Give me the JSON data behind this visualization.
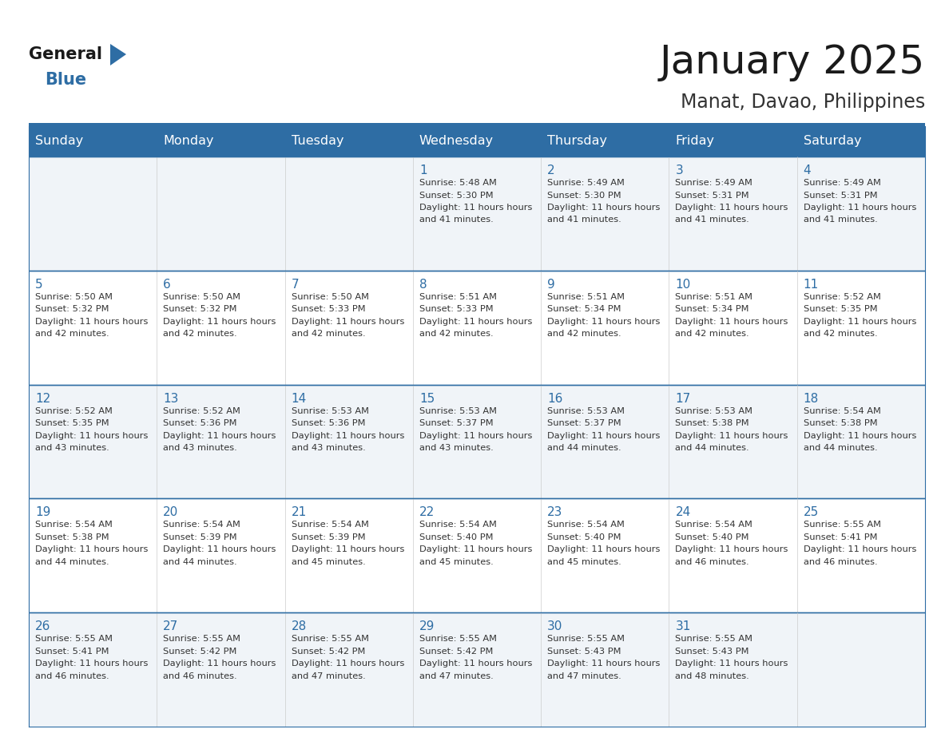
{
  "title": "January 2025",
  "subtitle": "Manat, Davao, Philippines",
  "days_of_week": [
    "Sunday",
    "Monday",
    "Tuesday",
    "Wednesday",
    "Thursday",
    "Friday",
    "Saturday"
  ],
  "header_bg_color": "#2E6DA4",
  "header_text_color": "#FFFFFF",
  "cell_bg_even": "#F0F4F8",
  "cell_bg_odd": "#FFFFFF",
  "border_color": "#2E6DA4",
  "title_color": "#1a1a1a",
  "subtitle_color": "#333333",
  "day_number_color": "#2E6DA4",
  "cell_text_color": "#333333",
  "logo_general_color": "#1a1a1a",
  "logo_blue_color": "#2E6DA4",
  "weeks": [
    [
      {
        "date": "",
        "sunrise": "",
        "sunset": "",
        "daylight": ""
      },
      {
        "date": "",
        "sunrise": "",
        "sunset": "",
        "daylight": ""
      },
      {
        "date": "",
        "sunrise": "",
        "sunset": "",
        "daylight": ""
      },
      {
        "date": "1",
        "sunrise": "5:48 AM",
        "sunset": "5:30 PM",
        "daylight": "11 hours and 41 minutes."
      },
      {
        "date": "2",
        "sunrise": "5:49 AM",
        "sunset": "5:30 PM",
        "daylight": "11 hours and 41 minutes."
      },
      {
        "date": "3",
        "sunrise": "5:49 AM",
        "sunset": "5:31 PM",
        "daylight": "11 hours and 41 minutes."
      },
      {
        "date": "4",
        "sunrise": "5:49 AM",
        "sunset": "5:31 PM",
        "daylight": "11 hours and 41 minutes."
      }
    ],
    [
      {
        "date": "5",
        "sunrise": "5:50 AM",
        "sunset": "5:32 PM",
        "daylight": "11 hours and 42 minutes."
      },
      {
        "date": "6",
        "sunrise": "5:50 AM",
        "sunset": "5:32 PM",
        "daylight": "11 hours and 42 minutes."
      },
      {
        "date": "7",
        "sunrise": "5:50 AM",
        "sunset": "5:33 PM",
        "daylight": "11 hours and 42 minutes."
      },
      {
        "date": "8",
        "sunrise": "5:51 AM",
        "sunset": "5:33 PM",
        "daylight": "11 hours and 42 minutes."
      },
      {
        "date": "9",
        "sunrise": "5:51 AM",
        "sunset": "5:34 PM",
        "daylight": "11 hours and 42 minutes."
      },
      {
        "date": "10",
        "sunrise": "5:51 AM",
        "sunset": "5:34 PM",
        "daylight": "11 hours and 42 minutes."
      },
      {
        "date": "11",
        "sunrise": "5:52 AM",
        "sunset": "5:35 PM",
        "daylight": "11 hours and 42 minutes."
      }
    ],
    [
      {
        "date": "12",
        "sunrise": "5:52 AM",
        "sunset": "5:35 PM",
        "daylight": "11 hours and 43 minutes."
      },
      {
        "date": "13",
        "sunrise": "5:52 AM",
        "sunset": "5:36 PM",
        "daylight": "11 hours and 43 minutes."
      },
      {
        "date": "14",
        "sunrise": "5:53 AM",
        "sunset": "5:36 PM",
        "daylight": "11 hours and 43 minutes."
      },
      {
        "date": "15",
        "sunrise": "5:53 AM",
        "sunset": "5:37 PM",
        "daylight": "11 hours and 43 minutes."
      },
      {
        "date": "16",
        "sunrise": "5:53 AM",
        "sunset": "5:37 PM",
        "daylight": "11 hours and 44 minutes."
      },
      {
        "date": "17",
        "sunrise": "5:53 AM",
        "sunset": "5:38 PM",
        "daylight": "11 hours and 44 minutes."
      },
      {
        "date": "18",
        "sunrise": "5:54 AM",
        "sunset": "5:38 PM",
        "daylight": "11 hours and 44 minutes."
      }
    ],
    [
      {
        "date": "19",
        "sunrise": "5:54 AM",
        "sunset": "5:38 PM",
        "daylight": "11 hours and 44 minutes."
      },
      {
        "date": "20",
        "sunrise": "5:54 AM",
        "sunset": "5:39 PM",
        "daylight": "11 hours and 44 minutes."
      },
      {
        "date": "21",
        "sunrise": "5:54 AM",
        "sunset": "5:39 PM",
        "daylight": "11 hours and 45 minutes."
      },
      {
        "date": "22",
        "sunrise": "5:54 AM",
        "sunset": "5:40 PM",
        "daylight": "11 hours and 45 minutes."
      },
      {
        "date": "23",
        "sunrise": "5:54 AM",
        "sunset": "5:40 PM",
        "daylight": "11 hours and 45 minutes."
      },
      {
        "date": "24",
        "sunrise": "5:54 AM",
        "sunset": "5:40 PM",
        "daylight": "11 hours and 46 minutes."
      },
      {
        "date": "25",
        "sunrise": "5:55 AM",
        "sunset": "5:41 PM",
        "daylight": "11 hours and 46 minutes."
      }
    ],
    [
      {
        "date": "26",
        "sunrise": "5:55 AM",
        "sunset": "5:41 PM",
        "daylight": "11 hours and 46 minutes."
      },
      {
        "date": "27",
        "sunrise": "5:55 AM",
        "sunset": "5:42 PM",
        "daylight": "11 hours and 46 minutes."
      },
      {
        "date": "28",
        "sunrise": "5:55 AM",
        "sunset": "5:42 PM",
        "daylight": "11 hours and 47 minutes."
      },
      {
        "date": "29",
        "sunrise": "5:55 AM",
        "sunset": "5:42 PM",
        "daylight": "11 hours and 47 minutes."
      },
      {
        "date": "30",
        "sunrise": "5:55 AM",
        "sunset": "5:43 PM",
        "daylight": "11 hours and 47 minutes."
      },
      {
        "date": "31",
        "sunrise": "5:55 AM",
        "sunset": "5:43 PM",
        "daylight": "11 hours and 48 minutes."
      },
      {
        "date": "",
        "sunrise": "",
        "sunset": "",
        "daylight": ""
      }
    ]
  ]
}
